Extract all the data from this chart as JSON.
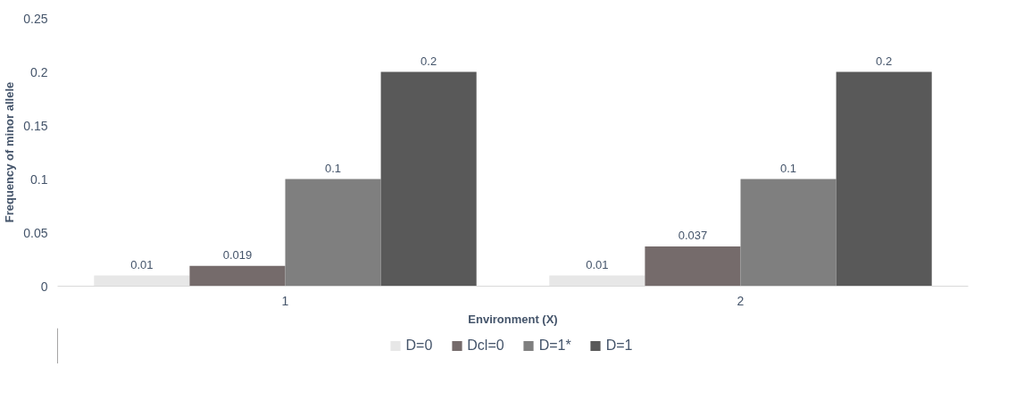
{
  "chart_data": {
    "type": "bar",
    "xlabel": "Environment (X)",
    "ylabel": "Frequency of minor allele",
    "categories": [
      "1",
      "2"
    ],
    "series": [
      {
        "name": "D=0",
        "color": "#e7e7e7",
        "values": [
          0.01,
          0.01
        ]
      },
      {
        "name": "Dcl=0",
        "color": "#756b6b",
        "values": [
          0.019,
          0.037
        ]
      },
      {
        "name": "D=1*",
        "color": "#7f7f7f",
        "values": [
          0.1,
          0.1
        ]
      },
      {
        "name": "D=1",
        "color": "#595959",
        "values": [
          0.2,
          0.2
        ]
      }
    ],
    "ylim": [
      0,
      0.25
    ],
    "yticks": [
      {
        "value": 0,
        "label": "0"
      },
      0.05,
      0.1,
      0.15,
      0.2,
      0.25
    ],
    "data_labels": true,
    "grid": false,
    "legend": "bottom"
  }
}
